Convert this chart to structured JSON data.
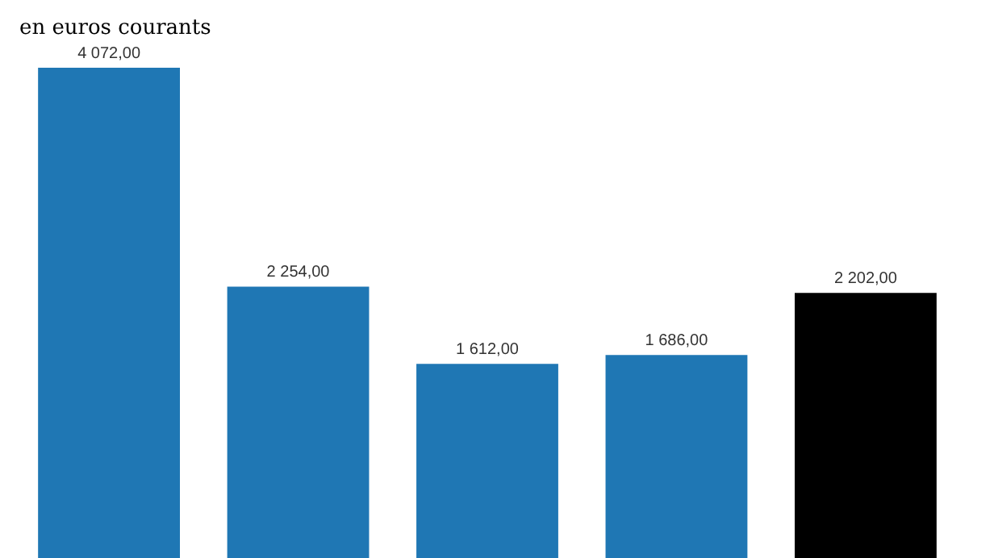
{
  "chart_data": {
    "type": "bar",
    "subtitle": "en euros courants",
    "categories": [
      null,
      null,
      null,
      null,
      null
    ],
    "values": [
      4072,
      2254,
      1612,
      1686,
      2202
    ],
    "value_labels": [
      "4 072,00",
      "2 254,00",
      "1 612,00",
      "1 686,00",
      "2 202,00"
    ],
    "colors": [
      "#1f77b4",
      "#1f77b4",
      "#1f77b4",
      "#1f77b4",
      "#000000"
    ]
  }
}
